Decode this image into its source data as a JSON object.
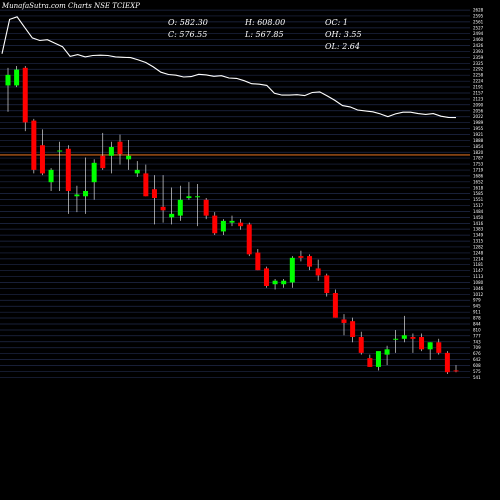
{
  "header": {
    "brand": "MunafaSutra.com",
    "title": "Charts NSE TCIEXP",
    "open": "O: 582.30",
    "high": "H: 608.00",
    "oc": "OC: 1",
    "close": "C: 576.55",
    "low": "L: 567.85",
    "oh": "OH: 3.55",
    "ol": "OL: 2.64"
  },
  "colors": {
    "background": "#000000",
    "bull": "#00ff00",
    "bear": "#ff0000",
    "wick": "#ffffff",
    "grid": "#202a4a",
    "line": "#ffffff",
    "level_line": "#d4691c"
  },
  "chart_data": {
    "type": "candlestick",
    "ylim": [
      520,
      2640
    ],
    "y_ticks": [
      2628,
      2595,
      2561,
      2527,
      2494,
      2460,
      2426,
      2393,
      2359,
      2325,
      2292,
      2258,
      2224,
      2191,
      2157,
      2123,
      2090,
      2056,
      2022,
      1989,
      1955,
      1921,
      1888,
      1854,
      1820,
      1787,
      1753,
      1719,
      1686,
      1652,
      1618,
      1585,
      1551,
      1517,
      1484,
      1450,
      1416,
      1383,
      1349,
      1315,
      1282,
      1248,
      1214,
      1181,
      1147,
      1113,
      1080,
      1046,
      1012,
      979,
      945,
      911,
      878,
      844,
      810,
      777,
      743,
      709,
      676,
      642,
      608,
      575,
      541
    ],
    "level_line": 1805,
    "overlay_line": [
      2380,
      2575,
      2590,
      2530,
      2470,
      2455,
      2460,
      2440,
      2420,
      2365,
      2375,
      2362,
      2370,
      2372,
      2370,
      2362,
      2360,
      2358,
      2345,
      2330,
      2305,
      2275,
      2262,
      2258,
      2248,
      2250,
      2263,
      2260,
      2252,
      2255,
      2242,
      2240,
      2227,
      2210,
      2207,
      2200,
      2155,
      2145,
      2145,
      2147,
      2142,
      2160,
      2163,
      2140,
      2115,
      2085,
      2078,
      2060,
      2055,
      2050,
      2038,
      2022,
      2038,
      2048,
      2048,
      2040,
      2035,
      2040,
      2025,
      2018,
      2017
    ],
    "candles": [
      {
        "open": 2200,
        "high": 2300,
        "low": 2050,
        "close": 2260
      },
      {
        "open": 2200,
        "high": 2310,
        "low": 2190,
        "close": 2290
      },
      {
        "open": 2300,
        "high": 2310,
        "low": 1940,
        "close": 1990
      },
      {
        "open": 2000,
        "high": 2010,
        "low": 1700,
        "close": 1720
      },
      {
        "open": 1860,
        "high": 1950,
        "low": 1690,
        "close": 1700
      },
      {
        "open": 1650,
        "high": 1730,
        "low": 1600,
        "close": 1720
      },
      {
        "open": 1830,
        "high": 1880,
        "low": 1600,
        "close": 1830
      },
      {
        "open": 1840,
        "high": 1860,
        "low": 1470,
        "close": 1600
      },
      {
        "open": 1570,
        "high": 1630,
        "low": 1480,
        "close": 1580
      },
      {
        "open": 1570,
        "high": 1790,
        "low": 1470,
        "close": 1600
      },
      {
        "open": 1650,
        "high": 1780,
        "low": 1550,
        "close": 1760
      },
      {
        "open": 1800,
        "high": 1930,
        "low": 1720,
        "close": 1730
      },
      {
        "open": 1800,
        "high": 1880,
        "low": 1700,
        "close": 1850
      },
      {
        "open": 1880,
        "high": 1920,
        "low": 1750,
        "close": 1810
      },
      {
        "open": 1780,
        "high": 1890,
        "low": 1720,
        "close": 1800
      },
      {
        "open": 1700,
        "high": 1770,
        "low": 1680,
        "close": 1720
      },
      {
        "open": 1700,
        "high": 1750,
        "low": 1570,
        "close": 1570
      },
      {
        "open": 1610,
        "high": 1690,
        "low": 1410,
        "close": 1560
      },
      {
        "open": 1510,
        "high": 1690,
        "low": 1420,
        "close": 1490
      },
      {
        "open": 1450,
        "high": 1620,
        "low": 1410,
        "close": 1470
      },
      {
        "open": 1460,
        "high": 1630,
        "low": 1430,
        "close": 1550
      },
      {
        "open": 1560,
        "high": 1650,
        "low": 1550,
        "close": 1570
      },
      {
        "open": 1570,
        "high": 1640,
        "low": 1400,
        "close": 1570
      },
      {
        "open": 1550,
        "high": 1560,
        "low": 1440,
        "close": 1460
      },
      {
        "open": 1460,
        "high": 1480,
        "low": 1350,
        "close": 1360
      },
      {
        "open": 1370,
        "high": 1440,
        "low": 1350,
        "close": 1430
      },
      {
        "open": 1420,
        "high": 1460,
        "low": 1400,
        "close": 1430
      },
      {
        "open": 1420,
        "high": 1440,
        "low": 1380,
        "close": 1400
      },
      {
        "open": 1410,
        "high": 1420,
        "low": 1230,
        "close": 1240
      },
      {
        "open": 1250,
        "high": 1270,
        "low": 1150,
        "close": 1150
      },
      {
        "open": 1160,
        "high": 1170,
        "low": 1050,
        "close": 1060
      },
      {
        "open": 1070,
        "high": 1100,
        "low": 1040,
        "close": 1090
      },
      {
        "open": 1070,
        "high": 1100,
        "low": 1050,
        "close": 1090
      },
      {
        "open": 1080,
        "high": 1230,
        "low": 1050,
        "close": 1220
      },
      {
        "open": 1230,
        "high": 1260,
        "low": 1200,
        "close": 1220
      },
      {
        "open": 1230,
        "high": 1240,
        "low": 1150,
        "close": 1170
      },
      {
        "open": 1160,
        "high": 1210,
        "low": 1090,
        "close": 1120
      },
      {
        "open": 1120,
        "high": 1130,
        "low": 1000,
        "close": 1020
      },
      {
        "open": 1020,
        "high": 1040,
        "low": 880,
        "close": 880
      },
      {
        "open": 870,
        "high": 900,
        "low": 780,
        "close": 850
      },
      {
        "open": 860,
        "high": 880,
        "low": 740,
        "close": 770
      },
      {
        "open": 770,
        "high": 800,
        "low": 670,
        "close": 680
      },
      {
        "open": 650,
        "high": 670,
        "low": 600,
        "close": 600
      },
      {
        "open": 600,
        "high": 680,
        "low": 580,
        "close": 690
      },
      {
        "open": 670,
        "high": 720,
        "low": 610,
        "close": 700
      },
      {
        "open": 760,
        "high": 810,
        "low": 680,
        "close": 760
      },
      {
        "open": 760,
        "high": 890,
        "low": 740,
        "close": 780
      },
      {
        "open": 770,
        "high": 790,
        "low": 680,
        "close": 760
      },
      {
        "open": 770,
        "high": 790,
        "low": 690,
        "close": 700
      },
      {
        "open": 700,
        "high": 740,
        "low": 640,
        "close": 740
      },
      {
        "open": 740,
        "high": 760,
        "low": 670,
        "close": 680
      },
      {
        "open": 680,
        "high": 690,
        "low": 560,
        "close": 570
      },
      {
        "open": 580,
        "high": 610,
        "low": 570,
        "close": 577
      }
    ]
  }
}
